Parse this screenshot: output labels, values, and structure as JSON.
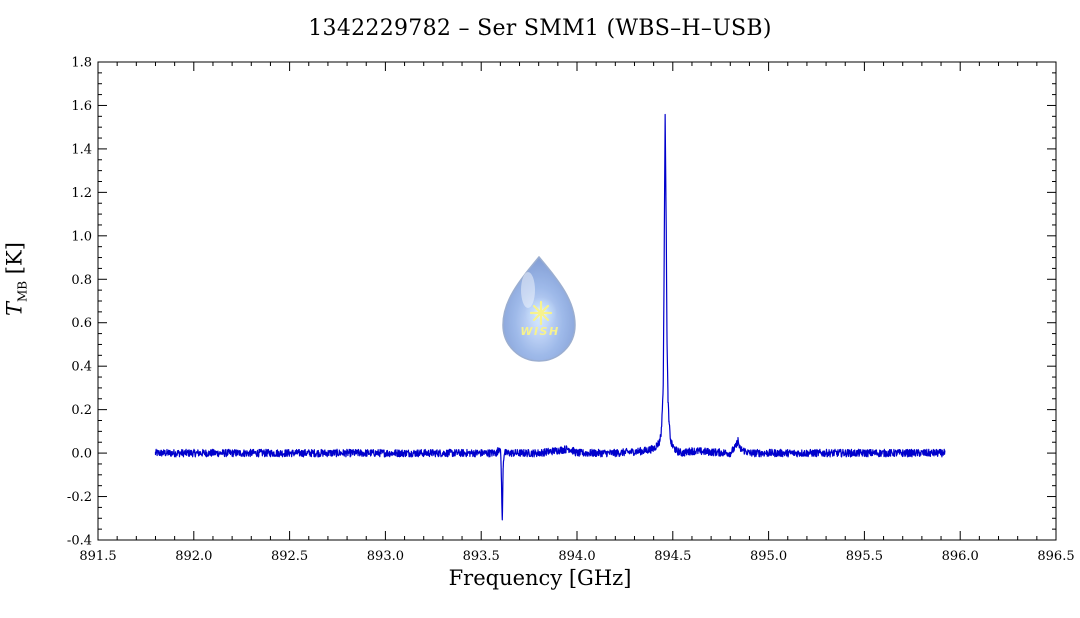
{
  "chart_data": {
    "type": "line",
    "title": "1342229782 – Ser SMM1 (WBS–H–USB)",
    "xlabel": "Frequency [GHz]",
    "ylabel": {
      "symbol": "T",
      "subscript": "MB",
      "unit": "[K]"
    },
    "xlim": [
      891.5,
      896.5
    ],
    "ylim": [
      -0.4,
      1.8
    ],
    "xticks": [
      "891.5",
      "892.0",
      "892.5",
      "893.0",
      "893.5",
      "894.0",
      "894.5",
      "895.0",
      "895.5",
      "896.0",
      "896.5"
    ],
    "yticks": [
      "-0.4",
      "-0.2",
      "0.0",
      "0.2",
      "0.4",
      "0.6",
      "0.8",
      "1.0",
      "1.2",
      "1.4",
      "1.6",
      "1.8"
    ],
    "grid": false,
    "series": [
      {
        "color": "#0000cc",
        "x": [
          891.8,
          892.0,
          892.5,
          893.0,
          893.5,
          893.58,
          893.6,
          893.605,
          893.61,
          893.615,
          893.62,
          893.64,
          893.8,
          893.96,
          894.0,
          894.2,
          894.35,
          894.4,
          894.43,
          894.44,
          894.45,
          894.455,
          894.46,
          894.463,
          894.466,
          894.47,
          894.475,
          894.48,
          894.49,
          894.5,
          894.52,
          894.55,
          894.6,
          894.8,
          894.83,
          894.84,
          894.85,
          894.9,
          895.0,
          895.5,
          895.92
        ],
        "y": [
          0.0,
          0.0,
          0.0,
          0.0,
          0.0,
          0.0,
          0.03,
          -0.1,
          -0.32,
          -0.05,
          0.0,
          0.0,
          0.0,
          0.02,
          0.0,
          0.0,
          0.01,
          0.02,
          0.05,
          0.1,
          0.3,
          0.9,
          1.57,
          1.3,
          1.0,
          0.5,
          0.25,
          0.14,
          0.05,
          0.03,
          0.01,
          0.0,
          0.01,
          0.0,
          0.03,
          0.06,
          0.02,
          0.0,
          0.0,
          0.0,
          0.0
        ]
      }
    ]
  },
  "logo": {
    "text": "WISH"
  }
}
